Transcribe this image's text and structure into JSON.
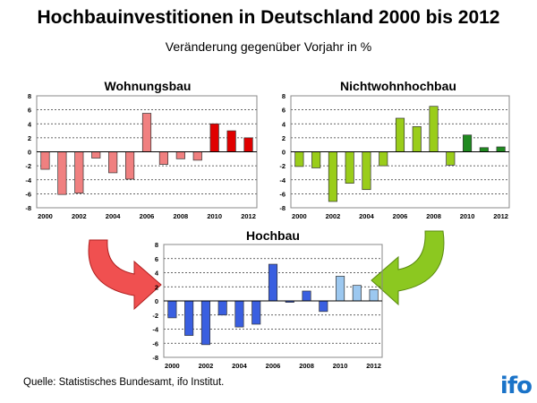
{
  "title": "Hochbauinvestitionen in Deutschland 2000 bis 2012",
  "subtitle": "Veränderung gegenüber Vorjahr in %",
  "source": "Quelle: Statistisches Bundesamt, ifo Institut.",
  "logo": "ifo",
  "chart_data": [
    {
      "type": "bar",
      "title": "Wohnungsbau",
      "ylim": [
        -8,
        8
      ],
      "yticks": [
        8,
        6,
        4,
        2,
        0,
        -2,
        -4,
        -6,
        -8
      ],
      "categories": [
        "2000",
        "2001",
        "2002",
        "2003",
        "2004",
        "2005",
        "2006",
        "2007",
        "2008",
        "2009",
        "2010",
        "2011",
        "2012"
      ],
      "xtick_labels": [
        "2000",
        "2002",
        "2004",
        "2006",
        "2008",
        "2010",
        "2012"
      ],
      "values": [
        -2.5,
        -6.1,
        -5.9,
        -0.9,
        -3.0,
        -3.9,
        5.5,
        -1.8,
        -1.0,
        -1.2,
        4.0,
        3.0,
        2.0
      ],
      "colors": {
        "actual": "#f08080",
        "forecast": "#e00000"
      },
      "forecast_from": "2010",
      "grid": true
    },
    {
      "type": "bar",
      "title": "Nichtwohnhochbau",
      "ylim": [
        -8,
        8
      ],
      "yticks": [
        8,
        6,
        4,
        2,
        0,
        -2,
        -4,
        -6,
        -8
      ],
      "categories": [
        "2000",
        "2001",
        "2002",
        "2003",
        "2004",
        "2005",
        "2006",
        "2007",
        "2008",
        "2009",
        "2010",
        "2011",
        "2012"
      ],
      "xtick_labels": [
        "2000",
        "2002",
        "2004",
        "2006",
        "2008",
        "2010",
        "2012"
      ],
      "values": [
        -2.1,
        -2.3,
        -7.1,
        -4.5,
        -5.4,
        -2.0,
        4.8,
        3.6,
        6.5,
        -1.9,
        2.4,
        0.6,
        0.7
      ],
      "colors": {
        "actual": "#9acd1a",
        "forecast": "#1f8a1f"
      },
      "forecast_from": "2010",
      "grid": true
    },
    {
      "type": "bar",
      "title": "Hochbau",
      "ylim": [
        -8,
        8
      ],
      "yticks": [
        8,
        6,
        4,
        2,
        0,
        -2,
        -4,
        -6,
        -8
      ],
      "categories": [
        "2000",
        "2001",
        "2002",
        "2003",
        "2004",
        "2005",
        "2006",
        "2007",
        "2008",
        "2009",
        "2010",
        "2011",
        "2012"
      ],
      "xtick_labels": [
        "2000",
        "2002",
        "2004",
        "2006",
        "2008",
        "2010",
        "2012"
      ],
      "values": [
        -2.4,
        -4.9,
        -6.2,
        -2.0,
        -3.7,
        -3.3,
        5.2,
        -0.2,
        1.4,
        -1.5,
        3.5,
        2.2,
        1.6
      ],
      "colors": {
        "actual": "#3a5fe0",
        "forecast": "#9cc8f0"
      },
      "forecast_from": "2010",
      "grid": true
    }
  ]
}
